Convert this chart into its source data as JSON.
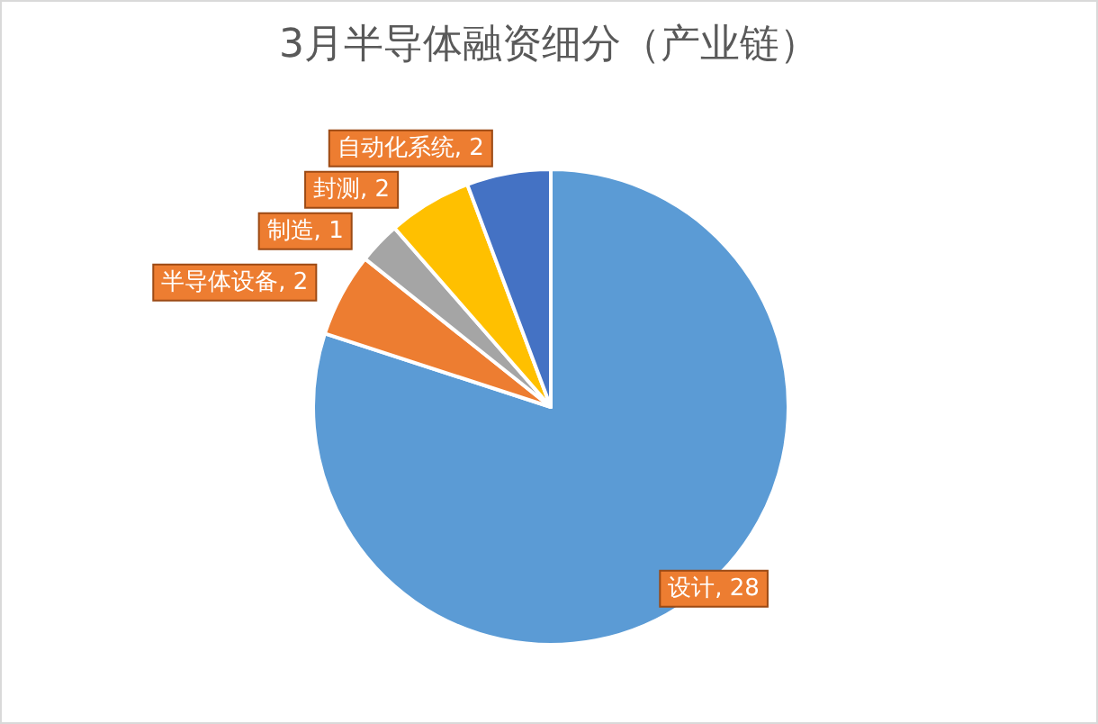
{
  "chart_data": {
    "type": "pie",
    "title": "3月半导体融资细分（产业链）",
    "categories": [
      "设计",
      "半导体设备",
      "制造",
      "封测",
      "自动化系统"
    ],
    "values": [
      28,
      2,
      1,
      2,
      2
    ],
    "colors": [
      "#5b9bd5",
      "#ed7d31",
      "#a5a5a5",
      "#ffc000",
      "#4472c4"
    ],
    "value_labels": [
      ", 28",
      ", 2",
      ", 1",
      ", 2",
      ", 2"
    ],
    "legend": false
  }
}
